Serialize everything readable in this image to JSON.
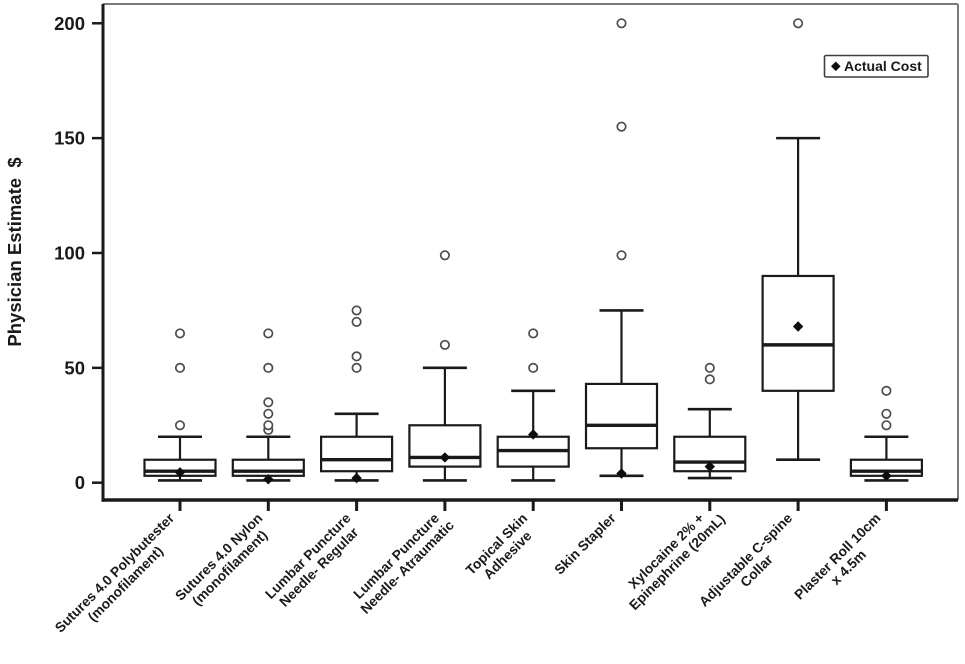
{
  "figure": {
    "background_color": "#ffffff",
    "axis_color": "#1a1a1a",
    "frame_color": "#7a7a7a",
    "outlier_color": "#4d4d4d",
    "marker_color": "#0d0d0d"
  },
  "chart_data": {
    "type": "boxplot",
    "title": "",
    "xlabel": "",
    "ylabel": "Physician Estimate  $",
    "ylim": [
      0,
      200
    ],
    "yticks": [
      0,
      50,
      100,
      150,
      200
    ],
    "grid": false,
    "legend": {
      "label": "Actual Cost",
      "marker": "filled-diamond",
      "position": "top-right"
    },
    "categories": [
      "Sutures 4.0 Polybutester (monofilament)",
      "Sutures 4.0 Nylon (monofilament)",
      "Lumbar Puncture Needle- Regular",
      "Lumbar Puncture Needle- Atraumatic",
      "Topical Skin Adhesive",
      "Skin Stapler",
      "Xylocaine 2% + Epinephrine (20mL)",
      "Adjustable C-spine Collar",
      "Plaster Roll 10cm x 4.5m"
    ],
    "boxes": [
      {
        "category": "Sutures 4.0 Polybutester (monofilament)",
        "label_lines": [
          "Sutures 4.0 Polybutester",
          "(monofilament)"
        ],
        "whisker_low": 1,
        "q1": 3,
        "median": 5,
        "q3": 10,
        "whisker_high": 20,
        "outliers": [
          25,
          50,
          65
        ],
        "actual_cost": 4.5
      },
      {
        "category": "Sutures 4.0 Nylon (monofilament)",
        "label_lines": [
          "Sutures 4.0 Nylon",
          "(monofilament)"
        ],
        "whisker_low": 1,
        "q1": 3,
        "median": 5,
        "q3": 10,
        "whisker_high": 20,
        "outliers": [
          23,
          25,
          30,
          35,
          50,
          65
        ],
        "actual_cost": 1.5
      },
      {
        "category": "Lumbar Puncture Needle- Regular",
        "label_lines": [
          "Lumbar Puncture",
          "Needle- Regular"
        ],
        "whisker_low": 1,
        "q1": 5,
        "median": 10,
        "q3": 20,
        "whisker_high": 30,
        "outliers": [
          50,
          55,
          70,
          75
        ],
        "actual_cost": 2
      },
      {
        "category": "Lumbar Puncture Needle- Atraumatic",
        "label_lines": [
          "Lumbar Puncture",
          "Needle- Atraumatic"
        ],
        "whisker_low": 1,
        "q1": 7,
        "median": 11,
        "q3": 25,
        "whisker_high": 50,
        "outliers": [
          60,
          99
        ],
        "actual_cost": 11
      },
      {
        "category": "Topical Skin Adhesive",
        "label_lines": [
          "Topical Skin",
          "Adhesive"
        ],
        "whisker_low": 1,
        "q1": 7,
        "median": 14,
        "q3": 20,
        "whisker_high": 40,
        "outliers": [
          50,
          65
        ],
        "actual_cost": 21
      },
      {
        "category": "Skin Stapler",
        "label_lines": [
          "Skin Stapler"
        ],
        "whisker_low": 3,
        "q1": 15,
        "median": 25,
        "q3": 43,
        "whisker_high": 75,
        "outliers": [
          99,
          155,
          200
        ],
        "actual_cost": 4
      },
      {
        "category": "Xylocaine 2% + Epinephrine (20mL)",
        "label_lines": [
          "Xylocaine 2% +",
          "Epinephrine (20mL)"
        ],
        "whisker_low": 2,
        "q1": 5,
        "median": 9,
        "q3": 20,
        "whisker_high": 32,
        "outliers": [
          45,
          50
        ],
        "actual_cost": 7
      },
      {
        "category": "Adjustable C-spine Collar",
        "label_lines": [
          "Adjustable C-spine",
          "Collar"
        ],
        "whisker_low": 10,
        "q1": 40,
        "median": 60,
        "q3": 90,
        "whisker_high": 150,
        "outliers": [
          200
        ],
        "actual_cost": 68
      },
      {
        "category": "Plaster Roll 10cm x 4.5m",
        "label_lines": [
          "Plaster Roll 10cm",
          "x 4.5m"
        ],
        "whisker_low": 1,
        "q1": 3,
        "median": 5,
        "q3": 10,
        "whisker_high": 20,
        "outliers": [
          25,
          30,
          40
        ],
        "actual_cost": 3
      }
    ]
  }
}
